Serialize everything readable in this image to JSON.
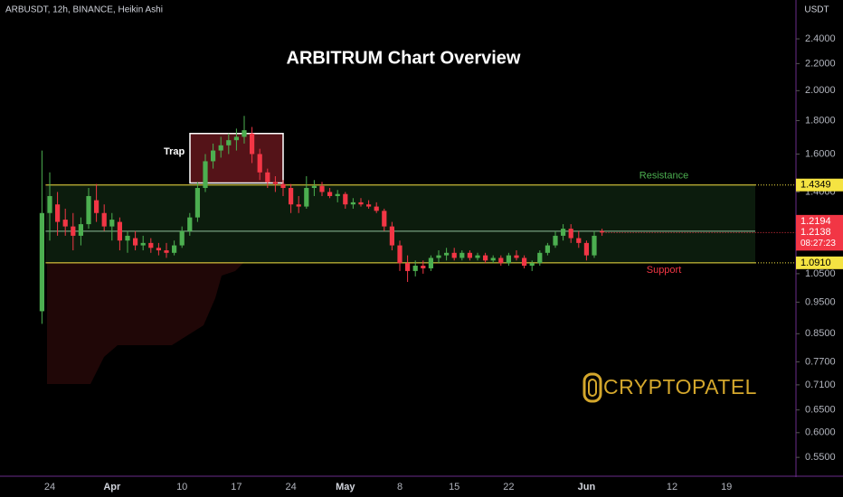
{
  "chart_data": {
    "type": "candlestick",
    "header": "ARBUSDT, 12h, BINANCE, Heikin Ashi",
    "title": "ARBITRUM Chart Overview",
    "watermark": "CRYPTOPATEL",
    "currency": "USDT",
    "log_scale": true,
    "up_color": "#4caf50",
    "down_color": "#f23645",
    "categories": [
      null,
      "24",
      null,
      null,
      null,
      null,
      null,
      null,
      null,
      "Apr",
      null,
      null,
      null,
      null,
      null,
      null,
      null,
      null,
      "10",
      null,
      null,
      null,
      null,
      null,
      null,
      "17",
      null,
      null,
      null,
      null,
      null,
      null,
      "24",
      null,
      null,
      null,
      null,
      null,
      null,
      "May",
      null,
      null,
      null,
      null,
      null,
      null,
      "8",
      null,
      null,
      null,
      null,
      null,
      null,
      "15",
      null,
      null,
      null,
      null,
      null,
      null,
      "22",
      null,
      null,
      null,
      null,
      null,
      null,
      null,
      null,
      null,
      "Jun",
      null,
      null,
      null,
      null,
      null,
      null,
      null,
      null,
      null,
      null,
      "12",
      null,
      null,
      null,
      null,
      null,
      null,
      "19",
      null
    ],
    "open": [
      0.92,
      1.3,
      1.34,
      1.27,
      1.24,
      1.2,
      1.25,
      1.36,
      1.3,
      1.24,
      1.26,
      1.18,
      1.19,
      1.16,
      1.17,
      1.15,
      1.14,
      1.13,
      1.16,
      1.22,
      1.28,
      1.42,
      1.56,
      1.62,
      1.65,
      1.68,
      1.7,
      1.72,
      1.6,
      1.5,
      1.45,
      1.44,
      1.42,
      1.34,
      1.33,
      1.42,
      1.43,
      1.4,
      1.38,
      1.39,
      1.34,
      1.35,
      1.34,
      1.33,
      1.31,
      1.24,
      1.16,
      1.09,
      1.06,
      1.08,
      1.07,
      1.11,
      1.12,
      1.13,
      1.11,
      1.13,
      1.11,
      1.12,
      1.1,
      1.11,
      1.09,
      1.12,
      1.11,
      1.08,
      1.09,
      1.13,
      1.16,
      1.2,
      1.23,
      1.19,
      1.17,
      1.12,
      1.22,
      null,
      null,
      null,
      null,
      null,
      null,
      null,
      null,
      null,
      null,
      null,
      null,
      null,
      null,
      null,
      null,
      null
    ],
    "high": [
      1.62,
      1.5,
      1.4,
      1.32,
      1.3,
      1.28,
      1.42,
      1.44,
      1.34,
      1.3,
      1.28,
      1.22,
      1.22,
      1.2,
      1.19,
      1.17,
      1.17,
      1.18,
      1.24,
      1.3,
      1.45,
      1.6,
      1.66,
      1.7,
      1.72,
      1.75,
      1.83,
      1.76,
      1.63,
      1.52,
      1.48,
      1.46,
      1.44,
      1.38,
      1.48,
      1.46,
      1.45,
      1.42,
      1.41,
      1.4,
      1.37,
      1.37,
      1.36,
      1.35,
      1.32,
      1.26,
      1.18,
      1.12,
      1.1,
      1.1,
      1.12,
      1.14,
      1.15,
      1.15,
      1.14,
      1.14,
      1.13,
      1.13,
      1.12,
      1.12,
      1.13,
      1.14,
      1.12,
      1.1,
      1.14,
      1.17,
      1.22,
      1.25,
      1.25,
      1.22,
      1.18,
      1.22,
      1.23,
      null,
      null,
      null,
      null,
      null,
      null,
      null,
      null,
      null,
      null,
      null,
      null,
      null,
      null,
      null,
      null,
      null
    ],
    "low": [
      0.88,
      1.18,
      1.2,
      1.2,
      1.14,
      1.16,
      1.23,
      1.26,
      1.22,
      1.18,
      1.14,
      1.13,
      1.14,
      1.14,
      1.13,
      1.12,
      1.11,
      1.12,
      1.15,
      1.2,
      1.26,
      1.4,
      1.52,
      1.58,
      1.6,
      1.62,
      1.66,
      1.55,
      1.46,
      1.42,
      1.4,
      1.38,
      1.3,
      1.3,
      1.32,
      1.38,
      1.38,
      1.37,
      1.35,
      1.32,
      1.32,
      1.33,
      1.32,
      1.3,
      1.22,
      1.14,
      1.06,
      1.02,
      1.04,
      1.05,
      1.06,
      1.09,
      1.1,
      1.1,
      1.1,
      1.1,
      1.1,
      1.09,
      1.09,
      1.08,
      1.08,
      1.1,
      1.07,
      1.06,
      1.08,
      1.12,
      1.15,
      1.18,
      1.17,
      1.15,
      1.1,
      1.11,
      1.2,
      null,
      null,
      null,
      null,
      null,
      null,
      null,
      null,
      null,
      null,
      null,
      null,
      null,
      null,
      null,
      null,
      null
    ],
    "close": [
      1.3,
      1.38,
      1.26,
      1.24,
      1.2,
      1.25,
      1.38,
      1.3,
      1.24,
      1.27,
      1.18,
      1.2,
      1.16,
      1.17,
      1.15,
      1.14,
      1.13,
      1.16,
      1.22,
      1.28,
      1.42,
      1.56,
      1.62,
      1.65,
      1.68,
      1.7,
      1.74,
      1.6,
      1.5,
      1.45,
      1.44,
      1.42,
      1.34,
      1.33,
      1.42,
      1.43,
      1.4,
      1.38,
      1.39,
      1.34,
      1.35,
      1.34,
      1.33,
      1.31,
      1.24,
      1.16,
      1.09,
      1.06,
      1.08,
      1.07,
      1.11,
      1.12,
      1.13,
      1.11,
      1.13,
      1.11,
      1.12,
      1.1,
      1.11,
      1.09,
      1.12,
      1.11,
      1.08,
      1.09,
      1.13,
      1.16,
      1.2,
      1.23,
      1.19,
      1.17,
      1.12,
      1.2,
      1.2138,
      null,
      null,
      null,
      null,
      null,
      null,
      null,
      null,
      null,
      null,
      null,
      null,
      null,
      null,
      null,
      null,
      null
    ],
    "ylim": [
      0.518,
      2.752
    ],
    "yticks": [
      {
        "value": 2.4,
        "label": "2.4000"
      },
      {
        "value": 2.2,
        "label": "2.2000"
      },
      {
        "value": 2.0,
        "label": "2.0000"
      },
      {
        "value": 1.8,
        "label": "1.8000"
      },
      {
        "value": 1.6,
        "label": "1.6000"
      },
      {
        "value": 1.4,
        "label": "1.4000"
      },
      {
        "value": 1.05,
        "label": "1.0500"
      },
      {
        "value": 0.95,
        "label": "0.9500"
      },
      {
        "value": 0.85,
        "label": "0.8500"
      },
      {
        "value": 0.77,
        "label": "0.7700"
      },
      {
        "value": 0.71,
        "label": "0.7100"
      },
      {
        "value": 0.65,
        "label": "0.6500"
      },
      {
        "value": 0.6,
        "label": "0.6000"
      },
      {
        "value": 0.55,
        "label": "0.5500"
      }
    ],
    "levels": [
      {
        "name": "Resistance",
        "value": 1.4349,
        "value_label": "1.4349",
        "color": "#f5e342",
        "name_color": "#4caf50"
      },
      {
        "name": "Support",
        "value": 1.091,
        "value_label": "1.0910",
        "color": "#f5e342",
        "name_color": "#f23645"
      }
    ],
    "mid_level": {
      "value": 1.2194,
      "value_label": "1.2194",
      "color": "#8fbf9a"
    },
    "last_price": {
      "value": 1.2138,
      "value_label": "1.2138",
      "countdown": "08:27:23",
      "color": "#f23645"
    },
    "trap": {
      "label": "Trap",
      "top": 1.72,
      "bottom": 1.445,
      "color": "#f23645"
    }
  }
}
